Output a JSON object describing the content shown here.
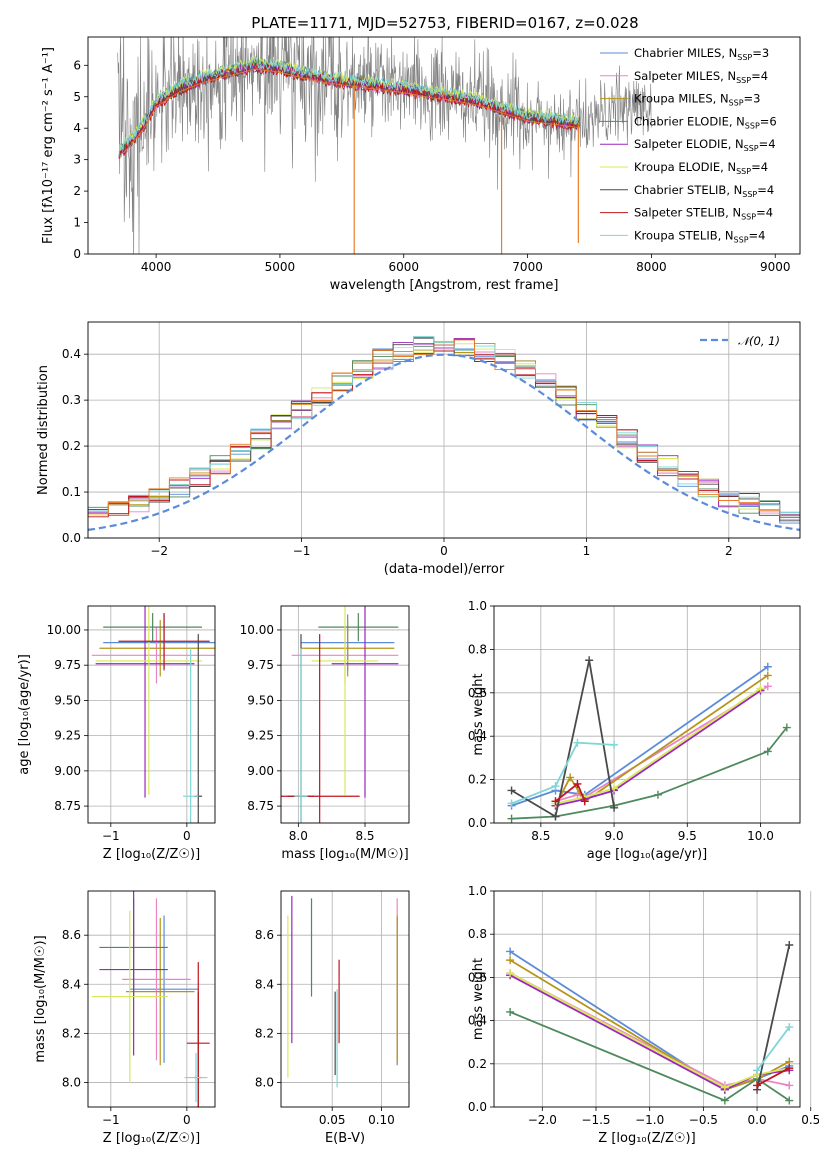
{
  "figure": {
    "title": "PLATE=1171, MJD=52753, FIBERID=0167, z=0.028"
  },
  "colors": {
    "Chabrier MILES": "#5b8bd9",
    "Salpeter MILES": "#e985c6",
    "Kroupa MILES": "#b6951a",
    "Chabrier ELODIE": "#4f8a5e",
    "Salpeter ELODIE": "#9b27bd",
    "Kroupa ELODIE": "#d8e85a",
    "Chabrier STELIB": "#4a4a4a",
    "Salpeter STELIB": "#c0141e",
    "Kroupa STELIB": "#7fd6d6",
    "data": "#808080",
    "orange": "#e87e2a",
    "normal": "#5b8bd9"
  },
  "chart_data": [
    {
      "id": "spectrum",
      "type": "line",
      "title": "PLATE=1171, MJD=52753, FIBERID=0167, z=0.028",
      "xlabel": "wavelength [Angstrom, rest frame]",
      "ylabel": "Flux [fλ10⁻¹⁷ erg cm⁻² s⁻¹ A⁻¹]",
      "xlim": [
        3450,
        9200
      ],
      "ylim": [
        0,
        6.9
      ],
      "xticks": [
        4000,
        5000,
        6000,
        7000,
        8000,
        9000
      ],
      "yticks": [
        0,
        1,
        2,
        3,
        4,
        5,
        6
      ],
      "grid": false,
      "legend_position": "top-right",
      "legend": [
        {
          "label": "Chabrier MILES, N",
          "sub": "SSP",
          "suffix": "=3",
          "color_key": "Chabrier MILES"
        },
        {
          "label": "Salpeter MILES, N",
          "sub": "SSP",
          "suffix": "=4",
          "color_key": "Salpeter MILES"
        },
        {
          "label": "Kroupa MILES, N",
          "sub": "SSP",
          "suffix": "=3",
          "color_key": "Kroupa MILES"
        },
        {
          "label": "Chabrier ELODIE, N",
          "sub": "SSP",
          "suffix": "=6",
          "color_key": "Chabrier ELODIE"
        },
        {
          "label": "Salpeter ELODIE, N",
          "sub": "SSP",
          "suffix": "=4",
          "color_key": "Salpeter ELODIE"
        },
        {
          "label": "Kroupa ELODIE, N",
          "sub": "SSP",
          "suffix": "=4",
          "color_key": "Kroupa ELODIE"
        },
        {
          "label": "Chabrier STELIB, N",
          "sub": "SSP",
          "suffix": "=4",
          "color_key": "Chabrier STELIB"
        },
        {
          "label": "Salpeter STELIB, N",
          "sub": "SSP",
          "suffix": "=4",
          "color_key": "Salpeter STELIB"
        },
        {
          "label": "Kroupa STELIB, N",
          "sub": "SSP",
          "suffix": "=4",
          "color_key": "Kroupa STELIB"
        }
      ],
      "continuum": {
        "x": [
          3700,
          3800,
          3900,
          4000,
          4200,
          4400,
          4600,
          4800,
          5000,
          5200,
          5400,
          5600,
          5800,
          6000,
          6200,
          6400,
          6600,
          6800,
          7000,
          7200,
          7400,
          7600,
          7800
        ],
        "y": [
          3.2,
          3.6,
          4.1,
          4.8,
          5.3,
          5.6,
          5.8,
          6.0,
          5.9,
          5.7,
          5.55,
          5.45,
          5.35,
          5.25,
          5.1,
          5.0,
          4.85,
          4.6,
          4.35,
          4.25,
          4.15,
          4.4,
          4.7
        ]
      },
      "spikes": [
        {
          "x": 5600,
          "y": 0
        },
        {
          "x": 6790,
          "y": 0
        },
        {
          "x": 7410,
          "y": 0.35
        }
      ]
    },
    {
      "id": "residuals",
      "type": "line",
      "xlabel": "(data-model)/error",
      "ylabel": "Normed distribution",
      "xlim": [
        -2.5,
        2.5
      ],
      "ylim": [
        0,
        0.47
      ],
      "xticks": [
        -2,
        -1,
        0,
        1,
        2
      ],
      "yticks": [
        0.0,
        0.1,
        0.2,
        0.3,
        0.4
      ],
      "grid": true,
      "legend_position": "top-right",
      "legend": [
        {
          "label": "𝒩(0, 1)",
          "color_key": "normal",
          "dashed": true
        }
      ]
    },
    {
      "id": "age_vs_Z",
      "type": "scatter",
      "xlabel": "Z [log₁₀(Z/Z☉)]",
      "ylabel": "age  [log₁₀(age/yr)]",
      "xlim": [
        -1.3,
        0.37
      ],
      "ylim": [
        8.63,
        10.17
      ],
      "xticks": [
        -1,
        0
      ],
      "yticks": [
        8.75,
        9.0,
        9.25,
        9.5,
        9.75,
        10.0
      ],
      "grid": true,
      "points": [
        {
          "c": "Chabrier MILES",
          "x": -0.3,
          "xe": 0.8,
          "y": 9.91,
          "ye": 0.2
        },
        {
          "c": "Salpeter MILES",
          "x": -0.4,
          "xe": 0.85,
          "y": 9.82,
          "ye": 0.2
        },
        {
          "c": "Kroupa MILES",
          "x": -0.35,
          "xe": 0.8,
          "y": 9.87,
          "ye": 0.2
        },
        {
          "c": "Chabrier ELODIE",
          "x": -0.45,
          "xe": 0.65,
          "y": 10.02,
          "ye": 0.1
        },
        {
          "c": "Salpeter ELODIE",
          "x": -0.55,
          "xe": 0.65,
          "y": 9.76,
          "ye": 0.95
        },
        {
          "c": "Kroupa ELODIE",
          "x": -0.5,
          "xe": 0.7,
          "y": 9.78,
          "ye": 0.95
        },
        {
          "c": "Chabrier STELIB",
          "x": 0.15,
          "xe": 0.05,
          "y": 8.82,
          "ye": 1.15
        },
        {
          "c": "Salpeter STELIB",
          "x": -0.3,
          "xe": 0.6,
          "y": 9.92,
          "ye": 0.2
        },
        {
          "c": "Kroupa STELIB",
          "x": 0.05,
          "xe": 0.1,
          "y": 8.82,
          "ye": 1.05
        }
      ]
    },
    {
      "id": "age_vs_mass",
      "type": "scatter",
      "xlabel": "mass [log₁₀(M/M☉)]",
      "ylabel": "",
      "xlim": [
        7.87,
        8.83
      ],
      "ylim": [
        8.63,
        10.17
      ],
      "xticks": [
        8.0,
        8.5
      ],
      "yticks": [
        8.75,
        9.0,
        9.25,
        9.5,
        9.75,
        10.0
      ],
      "grid": true,
      "points": [
        {
          "c": "Chabrier MILES",
          "x": 8.37,
          "xe": 0.35,
          "y": 9.91,
          "ye": 0.2
        },
        {
          "c": "Salpeter MILES",
          "x": 8.35,
          "xe": 0.4,
          "y": 9.82,
          "ye": 0.2
        },
        {
          "c": "Kroupa MILES",
          "x": 8.37,
          "xe": 0.35,
          "y": 9.87,
          "ye": 0.2
        },
        {
          "c": "Chabrier ELODIE",
          "x": 8.45,
          "xe": 0.3,
          "y": 10.02,
          "ye": 0.1
        },
        {
          "c": "Salpeter ELODIE",
          "x": 8.5,
          "xe": 0.25,
          "y": 9.76,
          "ye": 0.95
        },
        {
          "c": "Kroupa ELODIE",
          "x": 8.35,
          "xe": 0.25,
          "y": 9.78,
          "ye": 0.95
        },
        {
          "c": "Chabrier STELIB",
          "x": 8.02,
          "xe": 0.1,
          "y": 8.82,
          "ye": 1.15
        },
        {
          "c": "Salpeter STELIB",
          "x": 8.16,
          "xe": 0.3,
          "y": 8.82,
          "ye": 1.15
        },
        {
          "c": "Kroupa STELIB",
          "x": 8.02,
          "xe": 0.05,
          "y": 8.82,
          "ye": 1.05
        }
      ]
    },
    {
      "id": "weight_vs_age",
      "type": "line",
      "xlabel": "age  [log₁₀(age/yr)]",
      "ylabel": "mass weight",
      "xlim": [
        8.18,
        10.27
      ],
      "ylim": [
        0,
        1
      ],
      "xticks": [
        8.5,
        9.0,
        9.5,
        10.0
      ],
      "yticks": [
        0.0,
        0.2,
        0.4,
        0.6,
        0.8,
        1.0
      ],
      "grid": true,
      "series": [
        {
          "c": "Chabrier MILES",
          "x": [
            8.3,
            8.6,
            8.8,
            10.05
          ],
          "y": [
            0.08,
            0.15,
            0.13,
            0.72
          ]
        },
        {
          "c": "Salpeter MILES",
          "x": [
            8.6,
            8.75,
            8.8,
            10.05
          ],
          "y": [
            0.1,
            0.13,
            0.12,
            0.63
          ]
        },
        {
          "c": "Kroupa MILES",
          "x": [
            8.6,
            8.7,
            8.8,
            10.05
          ],
          "y": [
            0.08,
            0.21,
            0.1,
            0.68
          ]
        },
        {
          "c": "Chabrier ELODIE",
          "x": [
            8.3,
            8.6,
            9.0,
            9.3,
            10.05,
            10.18
          ],
          "y": [
            0.02,
            0.03,
            0.08,
            0.13,
            0.33,
            0.44
          ]
        },
        {
          "c": "Salpeter ELODIE",
          "x": [
            8.6,
            8.8,
            9.0,
            10.0
          ],
          "y": [
            0.08,
            0.11,
            0.15,
            0.61
          ]
        },
        {
          "c": "Kroupa ELODIE",
          "x": [
            8.6,
            8.8,
            9.0,
            10.0
          ],
          "y": [
            0.09,
            0.12,
            0.16,
            0.62
          ]
        },
        {
          "c": "Chabrier STELIB",
          "x": [
            8.3,
            8.6,
            8.83,
            9.0
          ],
          "y": [
            0.15,
            0.03,
            0.75,
            0.07
          ]
        },
        {
          "c": "Salpeter STELIB",
          "x": [
            8.6,
            8.75,
            8.8
          ],
          "y": [
            0.1,
            0.18,
            0.1
          ]
        },
        {
          "c": "Kroupa STELIB",
          "x": [
            8.3,
            8.6,
            8.75,
            9.0
          ],
          "y": [
            0.09,
            0.17,
            0.37,
            0.36
          ]
        }
      ]
    },
    {
      "id": "mass_vs_Z",
      "type": "scatter",
      "xlabel": "Z [log₁₀(Z/Z☉)]",
      "ylabel": "mass [log₁₀(M/M☉)]",
      "xlim": [
        -1.3,
        0.37
      ],
      "ylim": [
        7.9,
        8.78
      ],
      "xticks": [
        -1,
        0
      ],
      "yticks": [
        8.0,
        8.2,
        8.4,
        8.6
      ],
      "grid": true,
      "points": [
        {
          "c": "Chabrier MILES",
          "x": -0.3,
          "xe": 0.45,
          "y": 8.38,
          "ye": 0.3
        },
        {
          "c": "Salpeter MILES",
          "x": -0.4,
          "xe": 0.45,
          "y": 8.42,
          "ye": 0.33
        },
        {
          "c": "Kroupa MILES",
          "x": -0.35,
          "xe": 0.45,
          "y": 8.37,
          "ye": 0.3
        },
        {
          "c": "Chabrier ELODIE",
          "x": -0.7,
          "xe": 0.45,
          "y": 8.55,
          "ye": 0.2
        },
        {
          "c": "Salpeter ELODIE",
          "x": -0.7,
          "xe": 0.45,
          "y": 8.46,
          "ye": 0.35
        },
        {
          "c": "Kroupa ELODIE",
          "x": -0.75,
          "xe": 0.5,
          "y": 8.35,
          "ye": 0.35
        },
        {
          "c": "Chabrier STELIB",
          "x": 0.15,
          "xe": 0.05,
          "y": 8.02,
          "ye": 0.35
        },
        {
          "c": "Salpeter STELIB",
          "x": 0.15,
          "xe": 0.15,
          "y": 8.16,
          "ye": 0.33
        },
        {
          "c": "Kroupa STELIB",
          "x": 0.12,
          "xe": 0.15,
          "y": 8.02,
          "ye": 0.1
        }
      ]
    },
    {
      "id": "mass_vs_ebv",
      "type": "scatter",
      "xlabel": "E(B-V)",
      "ylabel": "",
      "xlim": [
        -0.002,
        0.128
      ],
      "ylim": [
        7.9,
        8.78
      ],
      "xticks": [
        0.05,
        0.1
      ],
      "yticks": [
        8.0,
        8.2,
        8.4,
        8.6
      ],
      "grid": true,
      "points": [
        {
          "c": "Chabrier MILES",
          "x": 0.116,
          "y": 8.37,
          "ye": 0.3
        },
        {
          "c": "Salpeter MILES",
          "x": 0.116,
          "y": 8.42,
          "ye": 0.33
        },
        {
          "c": "Kroupa MILES",
          "x": 0.116,
          "y": 8.38,
          "ye": 0.3
        },
        {
          "c": "Chabrier ELODIE",
          "x": 0.029,
          "y": 8.55,
          "ye": 0.2
        },
        {
          "c": "Salpeter ELODIE",
          "x": 0.009,
          "y": 8.46,
          "ye": 0.3
        },
        {
          "c": "Kroupa ELODIE",
          "x": 0.005,
          "y": 8.35,
          "ye": 0.33
        },
        {
          "c": "Chabrier STELIB",
          "x": 0.053,
          "y": 8.2,
          "ye": 0.17
        },
        {
          "c": "Salpeter STELIB",
          "x": 0.057,
          "y": 8.33,
          "ye": 0.17
        },
        {
          "c": "Kroupa STELIB",
          "x": 0.055,
          "y": 8.18,
          "ye": 0.2
        }
      ]
    },
    {
      "id": "weight_vs_Z",
      "type": "line",
      "xlabel": "Z [log₁₀(Z/Z☉)]",
      "ylabel": "mass weight",
      "xlim": [
        -2.45,
        0.4
      ],
      "ylim": [
        0,
        1
      ],
      "xticks": [
        -2.0,
        -1.5,
        -1.0,
        -0.5,
        0.0,
        0.5
      ],
      "yticks": [
        0.0,
        0.2,
        0.4,
        0.6,
        0.8,
        1.0
      ],
      "grid": true,
      "series": [
        {
          "c": "Chabrier MILES",
          "x": [
            -2.3,
            -0.3,
            0.0,
            0.3
          ],
          "y": [
            0.72,
            0.08,
            0.13,
            0.19
          ]
        },
        {
          "c": "Salpeter MILES",
          "x": [
            -2.3,
            -0.3,
            0.0,
            0.3
          ],
          "y": [
            0.62,
            0.1,
            0.13,
            0.1
          ]
        },
        {
          "c": "Kroupa MILES",
          "x": [
            -2.3,
            -0.3,
            0.0,
            0.3
          ],
          "y": [
            0.68,
            0.08,
            0.13,
            0.21
          ]
        },
        {
          "c": "Chabrier ELODIE",
          "x": [
            -2.3,
            -0.3,
            0.0,
            0.3
          ],
          "y": [
            0.44,
            0.03,
            0.13,
            0.03
          ]
        },
        {
          "c": "Salpeter ELODIE",
          "x": [
            -2.3,
            -0.3,
            0.0,
            0.3
          ],
          "y": [
            0.61,
            0.08,
            0.15,
            0.17
          ]
        },
        {
          "c": "Kroupa ELODIE",
          "x": [
            -2.3,
            -0.3,
            0.0,
            0.3
          ],
          "y": [
            0.62,
            0.09,
            0.15,
            0.18
          ]
        },
        {
          "c": "Chabrier STELIB",
          "x": [
            0.0,
            0.3
          ],
          "y": [
            0.08,
            0.75
          ]
        },
        {
          "c": "Salpeter STELIB",
          "x": [
            0.0,
            0.3
          ],
          "y": [
            0.1,
            0.18
          ]
        },
        {
          "c": "Kroupa STELIB",
          "x": [
            0.0,
            0.3
          ],
          "y": [
            0.17,
            0.37
          ]
        }
      ]
    }
  ]
}
